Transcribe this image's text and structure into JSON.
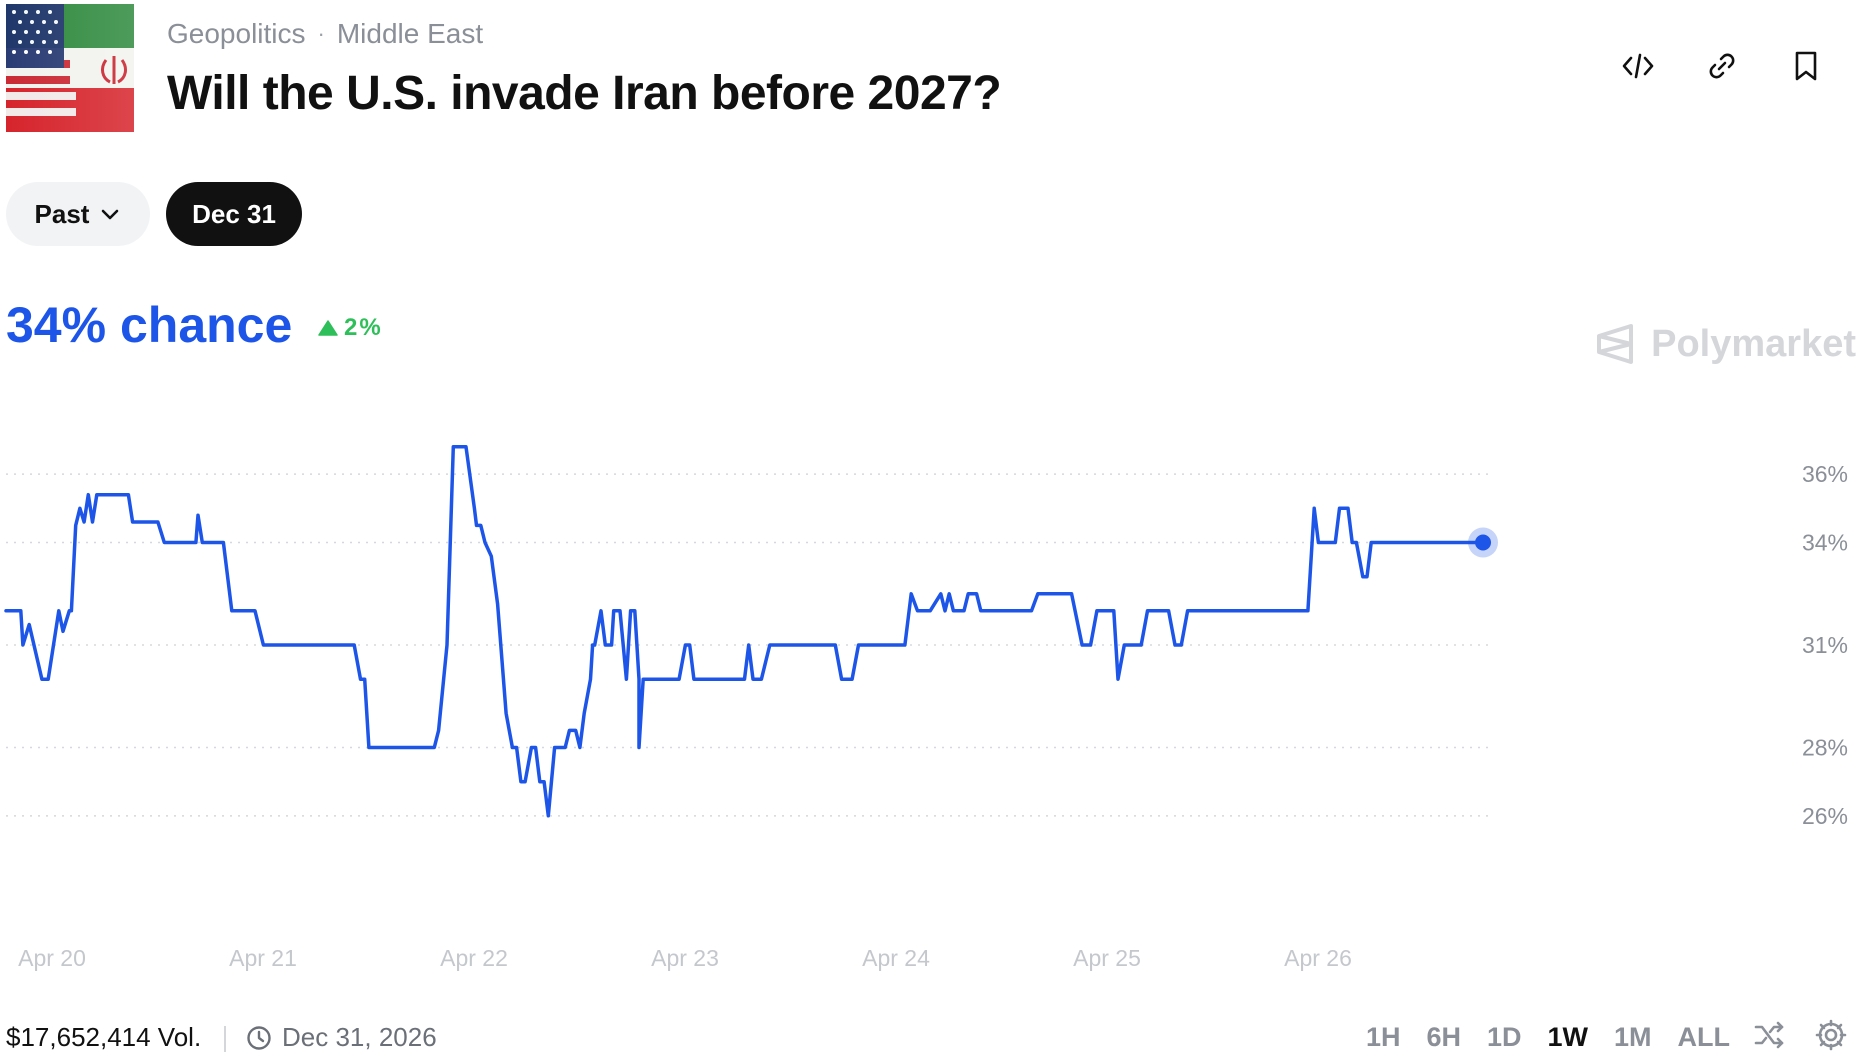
{
  "market": {
    "breadcrumb": [
      "Geopolitics",
      "Middle East"
    ],
    "breadcrumb_separator": "·",
    "title": "Will the U.S. invade Iran before 2027?"
  },
  "actions": [
    "embed-icon",
    "link-icon",
    "bookmark-icon"
  ],
  "filters": {
    "past_label": "Past",
    "selected_date": "Dec 31"
  },
  "outcome": {
    "chance_text": "34% chance",
    "delta_text": "2%",
    "delta_direction": "up"
  },
  "brand": {
    "name": "Polymarket"
  },
  "colors": {
    "accent": "#1d55e8",
    "up": "#2fbf5a",
    "dark": "#111111"
  },
  "chart_data": {
    "type": "line",
    "x_tick_labels": [
      "Apr 20",
      "Apr 21",
      "Apr 22",
      "Apr 23",
      "Apr 24",
      "Apr 25",
      "Apr 26"
    ],
    "y_tick_labels": [
      "36%",
      "34%",
      "31%",
      "28%",
      "26%"
    ],
    "y_ticks": [
      36,
      34,
      31,
      28,
      26
    ],
    "ylim": [
      25.0,
      37.0
    ],
    "xlim": [
      0,
      7.35
    ],
    "grid": true,
    "series": [
      {
        "values": [
          [
            0,
            32.0
          ],
          [
            0.07,
            32.0
          ],
          [
            0.08,
            31.0
          ],
          [
            0.11,
            31.6
          ],
          [
            0.17,
            30.0
          ],
          [
            0.2,
            30.0
          ],
          [
            0.25,
            32.0
          ],
          [
            0.27,
            31.4
          ],
          [
            0.3,
            32.0
          ],
          [
            0.31,
            32.0
          ],
          [
            0.33,
            34.5
          ],
          [
            0.35,
            35.0
          ],
          [
            0.37,
            34.6
          ],
          [
            0.39,
            35.4
          ],
          [
            0.41,
            34.6
          ],
          [
            0.43,
            35.4
          ],
          [
            0.46,
            35.4
          ],
          [
            0.58,
            35.4
          ],
          [
            0.6,
            34.6
          ],
          [
            0.72,
            34.6
          ],
          [
            0.75,
            34.0
          ],
          [
            0.9,
            34.0
          ],
          [
            0.91,
            34.8
          ],
          [
            0.93,
            34.0
          ],
          [
            1.03,
            34.0
          ],
          [
            1.07,
            32.0
          ],
          [
            1.18,
            32.0
          ],
          [
            1.22,
            31.0
          ],
          [
            1.65,
            31.0
          ],
          [
            1.68,
            30.0
          ],
          [
            1.7,
            30.0
          ],
          [
            1.72,
            28.0
          ],
          [
            2.03,
            28.0
          ],
          [
            2.05,
            28.5
          ],
          [
            2.09,
            31.0
          ],
          [
            2.12,
            36.8
          ],
          [
            2.18,
            36.8
          ],
          [
            2.22,
            35.0
          ],
          [
            2.23,
            34.5
          ],
          [
            2.25,
            34.5
          ],
          [
            2.27,
            34.0
          ],
          [
            2.3,
            33.6
          ],
          [
            2.33,
            32.2
          ],
          [
            2.37,
            29.0
          ],
          [
            2.4,
            28.0
          ],
          [
            2.42,
            28.0
          ],
          [
            2.44,
            27.0
          ],
          [
            2.46,
            27.0
          ],
          [
            2.49,
            28.0
          ],
          [
            2.51,
            28.0
          ],
          [
            2.53,
            27.0
          ],
          [
            2.55,
            27.0
          ],
          [
            2.57,
            26.0
          ],
          [
            2.6,
            28.0
          ],
          [
            2.65,
            28.0
          ],
          [
            2.67,
            28.5
          ],
          [
            2.7,
            28.5
          ],
          [
            2.72,
            28.0
          ],
          [
            2.74,
            29.0
          ],
          [
            2.77,
            30.0
          ],
          [
            2.78,
            31.0
          ],
          [
            2.79,
            31.0
          ],
          [
            2.82,
            32.0
          ],
          [
            2.84,
            31.0
          ],
          [
            2.87,
            31.0
          ],
          [
            2.88,
            32.0
          ],
          [
            2.91,
            32.0
          ],
          [
            2.94,
            30.0
          ],
          [
            2.96,
            32.0
          ],
          [
            2.98,
            32.0
          ],
          [
            3.0,
            30.0
          ],
          [
            3.0,
            28.0
          ],
          [
            3.02,
            30.0
          ],
          [
            3.19,
            30.0
          ],
          [
            3.22,
            31.0
          ],
          [
            3.24,
            31.0
          ],
          [
            3.26,
            30.0
          ],
          [
            3.5,
            30.0
          ],
          [
            3.52,
            31.0
          ],
          [
            3.54,
            30.0
          ],
          [
            3.58,
            30.0
          ],
          [
            3.62,
            31.0
          ],
          [
            3.93,
            31.0
          ],
          [
            3.96,
            30.0
          ],
          [
            4.01,
            30.0
          ],
          [
            4.04,
            31.0
          ],
          [
            4.26,
            31.0
          ],
          [
            4.29,
            32.5
          ],
          [
            4.32,
            32.0
          ],
          [
            4.38,
            32.0
          ],
          [
            4.43,
            32.5
          ],
          [
            4.45,
            32.0
          ],
          [
            4.47,
            32.5
          ],
          [
            4.49,
            32.0
          ],
          [
            4.54,
            32.0
          ],
          [
            4.56,
            32.5
          ],
          [
            4.6,
            32.5
          ],
          [
            4.62,
            32.0
          ],
          [
            4.86,
            32.0
          ],
          [
            4.89,
            32.5
          ],
          [
            5.05,
            32.5
          ],
          [
            5.08,
            31.6
          ],
          [
            5.1,
            31.0
          ],
          [
            5.14,
            31.0
          ],
          [
            5.17,
            32.0
          ],
          [
            5.25,
            32.0
          ],
          [
            5.27,
            30.0
          ],
          [
            5.3,
            31.0
          ],
          [
            5.38,
            31.0
          ],
          [
            5.41,
            32.0
          ],
          [
            5.51,
            32.0
          ],
          [
            5.54,
            31.0
          ],
          [
            5.57,
            31.0
          ],
          [
            5.6,
            32.0
          ],
          [
            6.17,
            32.0
          ],
          [
            6.2,
            35.0
          ],
          [
            6.22,
            34.0
          ],
          [
            6.3,
            34.0
          ],
          [
            6.32,
            35.0
          ],
          [
            6.36,
            35.0
          ],
          [
            6.38,
            34.0
          ],
          [
            6.4,
            34.0
          ],
          [
            6.43,
            33.0
          ],
          [
            6.45,
            33.0
          ],
          [
            6.47,
            34.0
          ],
          [
            7.0,
            34.0
          ]
        ]
      }
    ],
    "current_point": [
      7.0,
      34.0
    ]
  },
  "footer": {
    "volume_text": "$17,652,414 Vol.",
    "end_date": "Dec 31, 2026",
    "ranges": [
      "1H",
      "6H",
      "1D",
      "1W",
      "1M",
      "ALL"
    ],
    "active_range": "1W"
  }
}
